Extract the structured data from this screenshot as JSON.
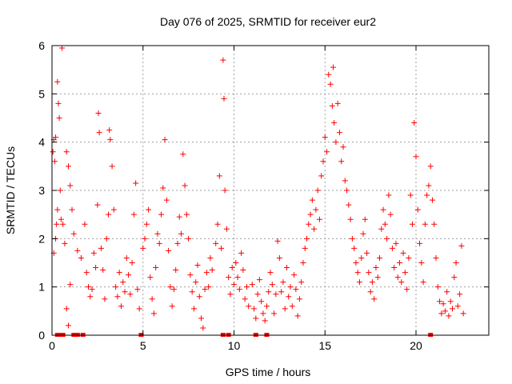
{
  "chart_data": {
    "type": "scatter",
    "title": "Day 076 of 2025, SRMTID for receiver eur2",
    "xlabel": "GPS time / hours",
    "ylabel": "SRMTID / TECUs",
    "xlim": [
      0,
      24
    ],
    "ylim": [
      0,
      6
    ],
    "xticks": [
      0,
      5,
      10,
      15,
      20
    ],
    "yticks": [
      0,
      1,
      2,
      3,
      4,
      5,
      6
    ],
    "grid": true,
    "marker": "+",
    "color": "#ff0000",
    "series": [
      {
        "name": "SRMTID",
        "points": [
          [
            0.05,
            3.8
          ],
          [
            0.1,
            4.05
          ],
          [
            0.15,
            3.6
          ],
          [
            0.2,
            4.1
          ],
          [
            0.25,
            2.3
          ],
          [
            0.3,
            5.25
          ],
          [
            0.35,
            4.8
          ],
          [
            0.4,
            4.5
          ],
          [
            0.45,
            3.0
          ],
          [
            0.5,
            2.4
          ],
          [
            0.55,
            5.95
          ],
          [
            0.1,
            1.7
          ],
          [
            0.2,
            2.0
          ],
          [
            0.3,
            2.6
          ],
          [
            0.6,
            2.3
          ],
          [
            0.7,
            1.9
          ],
          [
            0.8,
            3.8
          ],
          [
            0.9,
            3.5
          ],
          [
            1.0,
            3.1
          ],
          [
            1.1,
            2.6
          ],
          [
            0.8,
            0.55
          ],
          [
            0.9,
            0.2
          ],
          [
            1.0,
            1.05
          ],
          [
            1.2,
            2.1
          ],
          [
            1.4,
            1.75
          ],
          [
            1.6,
            1.6
          ],
          [
            1.8,
            2.3
          ],
          [
            1.9,
            1.3
          ],
          [
            2.0,
            1.0
          ],
          [
            2.1,
            0.8
          ],
          [
            2.2,
            0.95
          ],
          [
            2.3,
            1.7
          ],
          [
            2.4,
            1.4
          ],
          [
            2.5,
            2.7
          ],
          [
            2.55,
            4.6
          ],
          [
            2.6,
            4.2
          ],
          [
            2.7,
            1.8
          ],
          [
            2.8,
            1.35
          ],
          [
            2.9,
            0.75
          ],
          [
            3.0,
            2.0
          ],
          [
            3.1,
            2.5
          ],
          [
            3.15,
            4.25
          ],
          [
            3.2,
            4.05
          ],
          [
            3.3,
            3.5
          ],
          [
            3.4,
            2.6
          ],
          [
            3.5,
            1.0
          ],
          [
            3.6,
            0.8
          ],
          [
            3.7,
            1.3
          ],
          [
            3.8,
            0.6
          ],
          [
            3.9,
            1.1
          ],
          [
            4.0,
            0.9
          ],
          [
            4.1,
            1.6
          ],
          [
            4.2,
            1.25
          ],
          [
            4.3,
            0.85
          ],
          [
            4.4,
            1.5
          ],
          [
            4.5,
            2.5
          ],
          [
            4.6,
            3.15
          ],
          [
            4.7,
            0.95
          ],
          [
            4.8,
            0.55
          ],
          [
            5.0,
            1.8
          ],
          [
            5.1,
            2.0
          ],
          [
            5.2,
            2.3
          ],
          [
            5.3,
            2.6
          ],
          [
            5.4,
            1.2
          ],
          [
            5.5,
            0.75
          ],
          [
            5.6,
            0.45
          ],
          [
            5.7,
            1.4
          ],
          [
            5.8,
            2.1
          ],
          [
            5.9,
            1.9
          ],
          [
            6.0,
            2.5
          ],
          [
            6.1,
            3.05
          ],
          [
            6.2,
            4.05
          ],
          [
            6.3,
            2.8
          ],
          [
            6.4,
            1.75
          ],
          [
            6.5,
            1.0
          ],
          [
            6.6,
            0.6
          ],
          [
            6.7,
            0.95
          ],
          [
            6.8,
            1.35
          ],
          [
            6.9,
            1.9
          ],
          [
            7.0,
            2.45
          ],
          [
            7.1,
            2.1
          ],
          [
            7.2,
            3.75
          ],
          [
            7.3,
            3.1
          ],
          [
            7.4,
            2.5
          ],
          [
            7.5,
            2.0
          ],
          [
            7.6,
            1.25
          ],
          [
            7.7,
            0.9
          ],
          [
            7.8,
            0.55
          ],
          [
            7.9,
            1.1
          ],
          [
            8.0,
            1.45
          ],
          [
            8.1,
            0.8
          ],
          [
            8.2,
            0.35
          ],
          [
            8.3,
            0.15
          ],
          [
            8.4,
            0.95
          ],
          [
            8.5,
            1.3
          ],
          [
            8.6,
            1.0
          ],
          [
            8.7,
            1.6
          ],
          [
            8.8,
            1.35
          ],
          [
            9.0,
            1.9
          ],
          [
            9.1,
            2.3
          ],
          [
            9.2,
            3.3
          ],
          [
            9.3,
            1.8
          ],
          [
            9.4,
            5.7
          ],
          [
            9.45,
            4.9
          ],
          [
            9.5,
            3.0
          ],
          [
            9.6,
            2.2
          ],
          [
            9.7,
            1.2
          ],
          [
            9.8,
            0.85
          ],
          [
            9.9,
            1.4
          ],
          [
            10.0,
            1.05
          ],
          [
            10.1,
            1.5
          ],
          [
            10.2,
            1.2
          ],
          [
            10.3,
            0.95
          ],
          [
            10.4,
            1.7
          ],
          [
            10.5,
            1.35
          ],
          [
            10.6,
            0.75
          ],
          [
            10.7,
            1.0
          ],
          [
            10.8,
            0.6
          ],
          [
            11.0,
            1.05
          ],
          [
            11.1,
            0.55
          ],
          [
            11.2,
            0.35
          ],
          [
            11.3,
            0.85
          ],
          [
            11.4,
            1.15
          ],
          [
            11.5,
            0.7
          ],
          [
            11.6,
            0.45
          ],
          [
            11.7,
            0.3
          ],
          [
            11.8,
            0.6
          ],
          [
            11.9,
            0.9
          ],
          [
            12.0,
            1.3
          ],
          [
            12.1,
            1.05
          ],
          [
            12.2,
            0.45
          ],
          [
            12.3,
            0.85
          ],
          [
            12.4,
            1.95
          ],
          [
            12.5,
            1.6
          ],
          [
            12.6,
            0.9
          ],
          [
            12.7,
            1.1
          ],
          [
            12.8,
            0.55
          ],
          [
            12.9,
            1.4
          ],
          [
            13.0,
            0.8
          ],
          [
            13.1,
            1.0
          ],
          [
            13.2,
            0.6
          ],
          [
            13.3,
            1.25
          ],
          [
            13.4,
            0.95
          ],
          [
            13.5,
            0.4
          ],
          [
            13.6,
            0.75
          ],
          [
            13.7,
            1.1
          ],
          [
            13.8,
            1.5
          ],
          [
            13.9,
            1.8
          ],
          [
            14.0,
            2.0
          ],
          [
            14.1,
            2.3
          ],
          [
            14.2,
            2.5
          ],
          [
            14.3,
            2.8
          ],
          [
            14.4,
            2.2
          ],
          [
            14.5,
            2.6
          ],
          [
            14.6,
            3.0
          ],
          [
            14.7,
            2.4
          ],
          [
            14.8,
            3.3
          ],
          [
            14.9,
            3.6
          ],
          [
            15.0,
            4.1
          ],
          [
            15.1,
            3.8
          ],
          [
            15.2,
            5.4
          ],
          [
            15.3,
            5.2
          ],
          [
            15.4,
            4.75
          ],
          [
            15.45,
            5.55
          ],
          [
            15.5,
            4.4
          ],
          [
            15.6,
            4.0
          ],
          [
            15.7,
            4.8
          ],
          [
            15.8,
            4.2
          ],
          [
            15.9,
            3.6
          ],
          [
            16.0,
            3.9
          ],
          [
            16.1,
            3.2
          ],
          [
            16.2,
            3.0
          ],
          [
            16.3,
            2.7
          ],
          [
            16.4,
            2.4
          ],
          [
            16.5,
            2.0
          ],
          [
            16.6,
            1.8
          ],
          [
            16.7,
            1.5
          ],
          [
            16.8,
            1.3
          ],
          [
            16.9,
            1.1
          ],
          [
            17.0,
            1.6
          ],
          [
            17.1,
            2.1
          ],
          [
            17.2,
            2.4
          ],
          [
            17.3,
            1.7
          ],
          [
            17.4,
            1.3
          ],
          [
            17.5,
            0.9
          ],
          [
            17.6,
            1.1
          ],
          [
            17.7,
            0.75
          ],
          [
            17.8,
            1.4
          ],
          [
            17.9,
            1.2
          ],
          [
            18.0,
            1.6
          ],
          [
            18.1,
            2.2
          ],
          [
            18.2,
            2.6
          ],
          [
            18.3,
            2.3
          ],
          [
            18.4,
            2.0
          ],
          [
            18.5,
            2.9
          ],
          [
            18.6,
            2.5
          ],
          [
            18.7,
            1.8
          ],
          [
            18.8,
            1.4
          ],
          [
            18.9,
            1.9
          ],
          [
            19.0,
            1.2
          ],
          [
            19.1,
            1.5
          ],
          [
            19.2,
            1.1
          ],
          [
            19.3,
            1.7
          ],
          [
            19.4,
            1.3
          ],
          [
            19.5,
            0.95
          ],
          [
            19.6,
            1.6
          ],
          [
            19.7,
            2.9
          ],
          [
            19.8,
            2.3
          ],
          [
            19.9,
            4.4
          ],
          [
            20.0,
            3.7
          ],
          [
            20.1,
            2.6
          ],
          [
            20.2,
            1.9
          ],
          [
            20.3,
            1.5
          ],
          [
            20.4,
            1.1
          ],
          [
            20.5,
            2.3
          ],
          [
            20.6,
            2.9
          ],
          [
            20.7,
            3.1
          ],
          [
            20.8,
            3.5
          ],
          [
            20.9,
            2.8
          ],
          [
            21.0,
            2.3
          ],
          [
            21.1,
            1.6
          ],
          [
            21.2,
            1.0
          ],
          [
            21.3,
            0.7
          ],
          [
            21.4,
            0.45
          ],
          [
            21.5,
            0.65
          ],
          [
            21.6,
            0.5
          ],
          [
            21.7,
            0.9
          ],
          [
            21.8,
            0.4
          ],
          [
            21.9,
            0.7
          ],
          [
            22.0,
            0.55
          ],
          [
            22.1,
            1.2
          ],
          [
            22.2,
            1.5
          ],
          [
            22.3,
            0.6
          ],
          [
            22.4,
            0.85
          ],
          [
            22.5,
            1.85
          ],
          [
            22.6,
            0.45
          ]
        ]
      }
    ],
    "zero_markers_x": [
      0.3,
      0.4,
      0.5,
      0.6,
      1.2,
      1.4,
      1.7,
      4.9,
      9.4,
      9.7,
      11.2,
      11.8,
      20.8
    ]
  }
}
